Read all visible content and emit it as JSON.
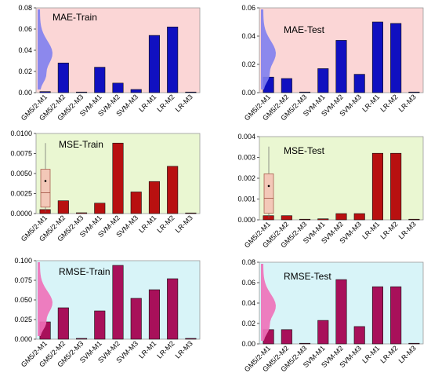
{
  "figure": {
    "categories": [
      "GM5/2-M1",
      "GM5/2-M2",
      "GM5/2-M3",
      "SVM-M1",
      "SVM-M2",
      "SVM-M3",
      "LR-M1",
      "LR-M2",
      "LR-M3"
    ]
  },
  "chart_data": [
    {
      "type": "bar",
      "title": "MAE-Train",
      "categories": [
        "GM5/2-M1",
        "GM5/2-M2",
        "GM5/2-M3",
        "SVM-M1",
        "SVM-M2",
        "SVM-M3",
        "LR-M1",
        "LR-M2",
        "LR-M3"
      ],
      "values": [
        0.001,
        0.028,
        0.0,
        0.024,
        0.009,
        0.003,
        0.054,
        0.062,
        0.0
      ],
      "ylim": [
        0,
        0.08
      ],
      "yticks": [
        "0.00",
        "0.02",
        "0.04",
        "0.06",
        "0.08"
      ],
      "background": "#fbd6d6",
      "bar_color": "#1010c0",
      "inset": "density",
      "inset_color": "#8080f0"
    },
    {
      "type": "bar",
      "title": "MAE-Test",
      "categories": [
        "GM5/2-M1",
        "GM5/2-M2",
        "GM5/2-M3",
        "SVM-M1",
        "SVM-M2",
        "SVM-M3",
        "LR-M1",
        "LR-M2",
        "LR-M3"
      ],
      "values": [
        0.011,
        0.01,
        0.0,
        0.017,
        0.037,
        0.013,
        0.05,
        0.049,
        0.0
      ],
      "ylim": [
        0,
        0.06
      ],
      "yticks": [
        "0.00",
        "0.02",
        "0.04",
        "0.06"
      ],
      "background": "#fbd6d6",
      "bar_color": "#1010c0",
      "inset": "density",
      "inset_color": "#8080f0"
    },
    {
      "type": "bar",
      "title": "MSE-Train",
      "categories": [
        "GM5/2-M1",
        "GM5/2-M2",
        "GM5/2-M3",
        "SVM-M1",
        "SVM-M2",
        "SVM-M3",
        "LR-M1",
        "LR-M2",
        "LR-M3"
      ],
      "values": [
        0.0005,
        0.0016,
        0.0001,
        0.0013,
        0.0088,
        0.0027,
        0.004,
        0.0059,
        0.0
      ],
      "ylim": [
        0,
        0.01
      ],
      "yticks": [
        "0.0000",
        "0.0025",
        "0.0050",
        "0.0075",
        "0.0100"
      ],
      "background": "#eaf7d2",
      "bar_color": "#b81010",
      "inset": "box",
      "inset_color": "#f3c8b8"
    },
    {
      "type": "bar",
      "title": "MSE-Test",
      "categories": [
        "GM5/2-M1",
        "GM5/2-M2",
        "GM5/2-M3",
        "SVM-M1",
        "SVM-M2",
        "SVM-M3",
        "LR-M1",
        "LR-M2",
        "LR-M3"
      ],
      "values": [
        0.0002,
        0.0002,
        0.0,
        5e-05,
        0.0003,
        0.0003,
        0.0032,
        0.0032,
        0.0
      ],
      "ylim": [
        0,
        0.004
      ],
      "yticks": [
        "0.000",
        "0.001",
        "0.002",
        "0.003",
        "0.004"
      ],
      "background": "#eaf7d2",
      "bar_color": "#b81010",
      "inset": "box",
      "inset_color": "#f3c8b8"
    },
    {
      "type": "bar",
      "title": "RMSE-Train",
      "categories": [
        "GM5/2-M1",
        "GM5/2-M2",
        "GM5/2-M3",
        "SVM-M1",
        "SVM-M2",
        "SVM-M3",
        "LR-M1",
        "LR-M2",
        "LR-M3"
      ],
      "values": [
        0.022,
        0.04,
        0.001,
        0.036,
        0.094,
        0.052,
        0.063,
        0.077,
        0.001
      ],
      "ylim": [
        0,
        0.1
      ],
      "yticks": [
        "0.000",
        "0.025",
        "0.050",
        "0.075",
        "0.100"
      ],
      "background": "#d8f4f8",
      "bar_color": "#a8105a",
      "inset": "density",
      "inset_color": "#f070b8"
    },
    {
      "type": "bar",
      "title": "RMSE-Test",
      "categories": [
        "GM5/2-M1",
        "GM5/2-M2",
        "GM5/2-M3",
        "SVM-M1",
        "SVM-M2",
        "SVM-M3",
        "LR-M1",
        "LR-M2",
        "LR-M3"
      ],
      "values": [
        0.014,
        0.014,
        0.0005,
        0.023,
        0.063,
        0.017,
        0.056,
        0.056,
        0.0005
      ],
      "ylim": [
        0,
        0.08
      ],
      "yticks": [
        "0.00",
        "0.02",
        "0.04",
        "0.06",
        "0.08"
      ],
      "background": "#d8f4f8",
      "bar_color": "#a8105a",
      "inset": "density",
      "inset_color": "#f070b8"
    }
  ]
}
